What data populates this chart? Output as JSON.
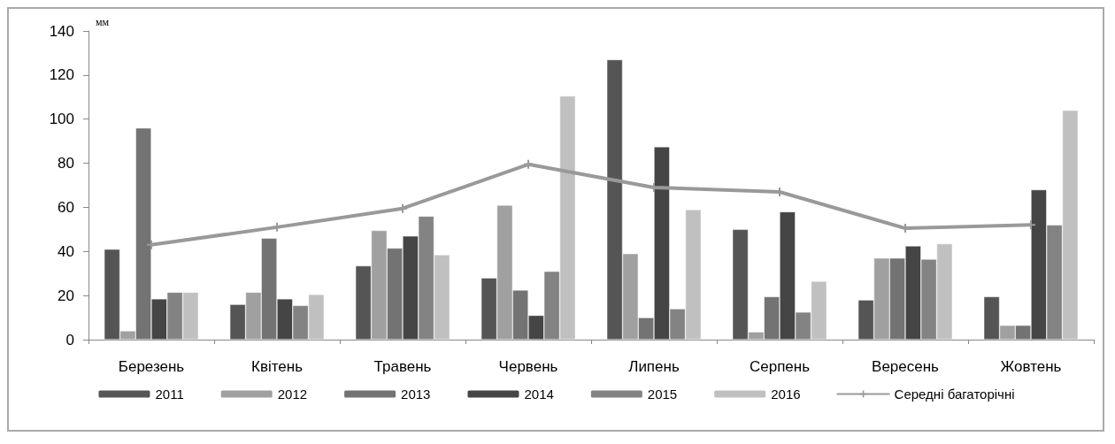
{
  "chart_data": {
    "type": "bar",
    "ylabel": "мм",
    "categories": [
      "Березень",
      "Квітень",
      "Травень",
      "Червень",
      "Липень",
      "Серпень",
      "Вересень",
      "Жовтень"
    ],
    "series": [
      {
        "name": "2011",
        "color": "#555555",
        "values": [
          41,
          16,
          33.5,
          28,
          127,
          50,
          18,
          19.5
        ]
      },
      {
        "name": "2012",
        "color": "#a0a0a0",
        "values": [
          4,
          21.5,
          49.5,
          61,
          39,
          3.5,
          37,
          6.5
        ]
      },
      {
        "name": "2013",
        "color": "#737373",
        "values": [
          96,
          46,
          41.5,
          22.5,
          10,
          19.5,
          37,
          6.5
        ]
      },
      {
        "name": "2014",
        "color": "#454545",
        "values": [
          18.5,
          18.5,
          47,
          11,
          87.5,
          58,
          42.5,
          68
        ]
      },
      {
        "name": "2015",
        "color": "#838383",
        "values": [
          21.5,
          15.5,
          56,
          31,
          14,
          12.5,
          36.5,
          52
        ]
      },
      {
        "name": "2016",
        "color": "#c0c0c0",
        "values": [
          21.5,
          20.5,
          38.5,
          110.5,
          59,
          26.5,
          43.5,
          104
        ]
      },
      {
        "name": "Середні багаторічні",
        "type": "line",
        "color": "#999999",
        "marker": "cross",
        "values": [
          43,
          51,
          59.5,
          79.5,
          69,
          67,
          50.5,
          52
        ]
      }
    ],
    "ylim": [
      0,
      140
    ],
    "yticks": [
      0,
      20,
      40,
      60,
      80,
      100,
      120,
      140
    ],
    "grid": false,
    "legend": "bottom"
  }
}
